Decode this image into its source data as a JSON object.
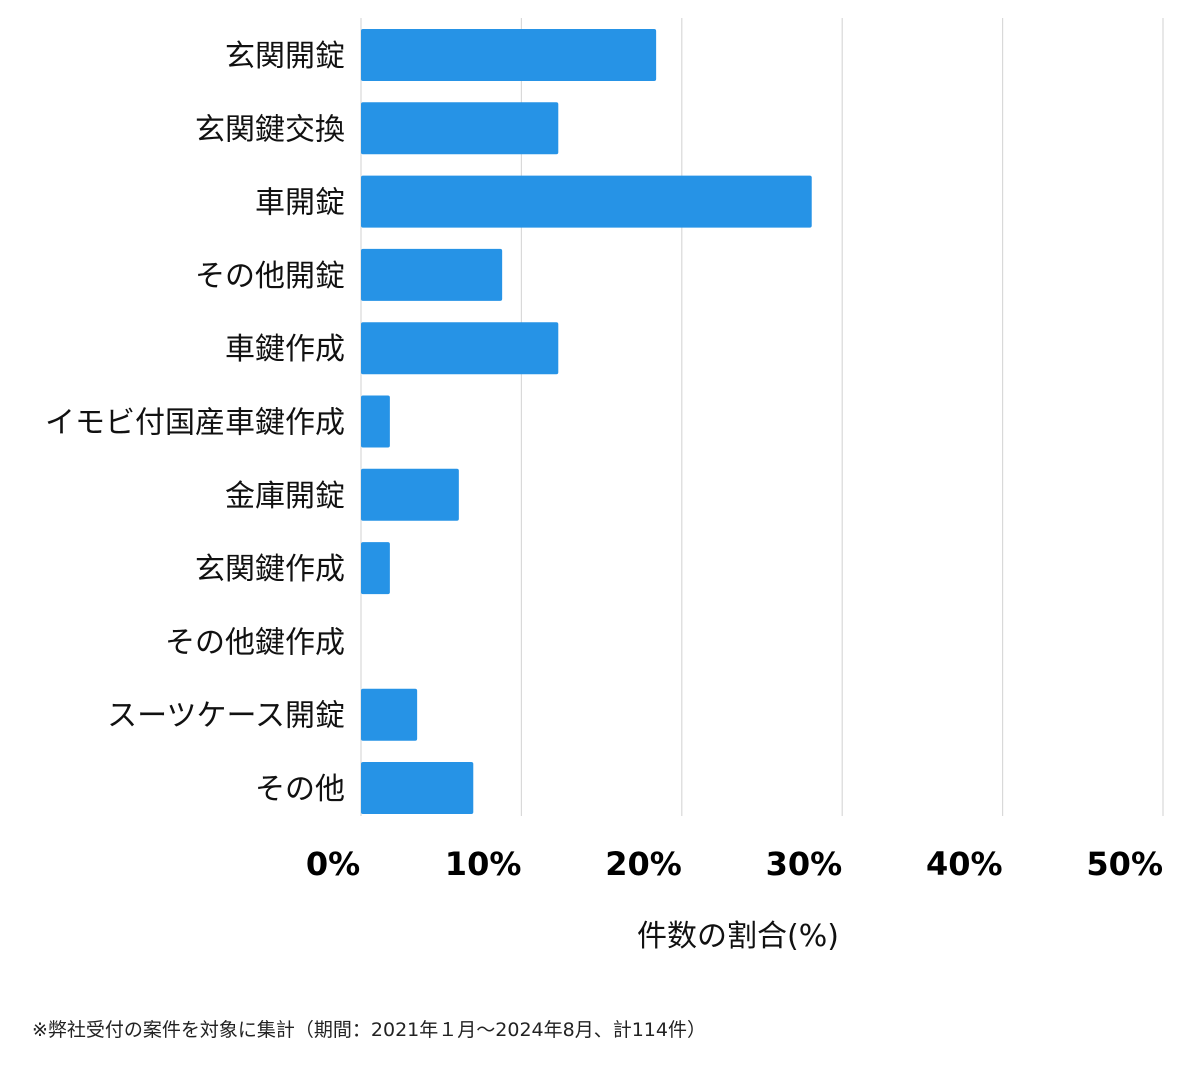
{
  "chart_data": {
    "type": "bar",
    "orientation": "horizontal",
    "categories": [
      "玄関開錠",
      "玄関鍵交換",
      "車開錠",
      "その他開錠",
      "車鍵作成",
      "イモビ付国産車鍵作成",
      "金庫開錠",
      "玄関鍵作成",
      "その他鍵作成",
      "スーツケース開錠",
      "その他"
    ],
    "values": [
      18.4,
      12.3,
      28.1,
      8.8,
      12.3,
      1.8,
      6.1,
      1.8,
      0,
      3.5,
      7.0
    ],
    "xlabel": "件数の割合(%)",
    "ylabel": "",
    "xlim": [
      0,
      50
    ],
    "ticks": [
      0,
      10,
      20,
      30,
      40,
      50
    ],
    "tick_labels": [
      "0%",
      "10%",
      "20%",
      "30%",
      "40%",
      "50%"
    ],
    "grid": true,
    "bar_color": "#2693e6",
    "grid_color": "#d9d9d9"
  },
  "footnote": "※弊社受付の案件を対象に集計（期間：2021年１月～2024年8月、計114件）"
}
